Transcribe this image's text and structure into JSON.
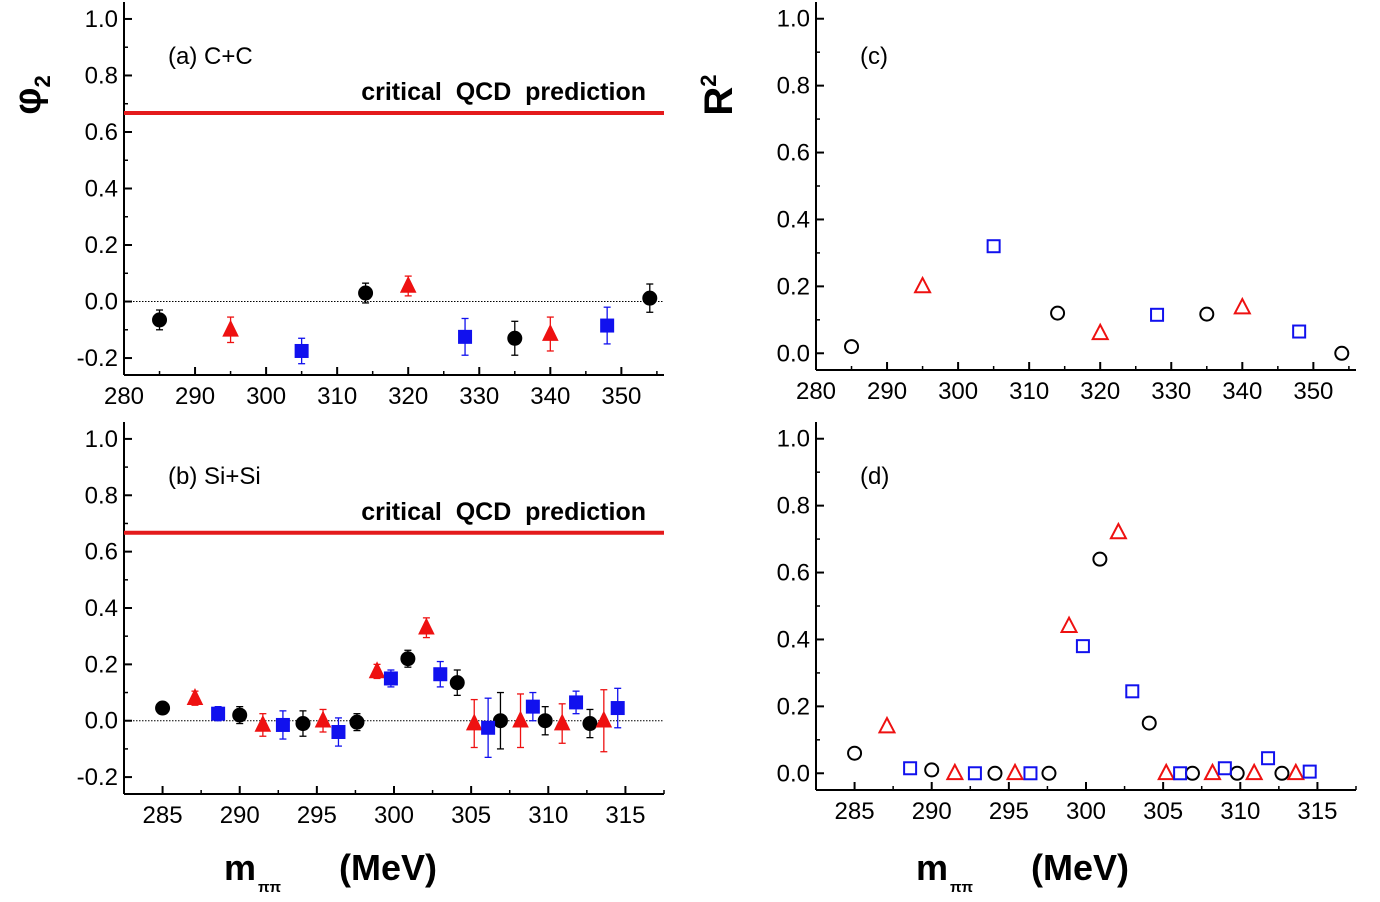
{
  "chart_data": [
    {
      "id": "a",
      "type": "scatter",
      "panel_label": "(a) C+C",
      "ylabel": "φ2",
      "xlim": [
        280,
        356
      ],
      "ylim": [
        -0.26,
        1.06
      ],
      "xticks": [
        280,
        290,
        300,
        310,
        320,
        330,
        340,
        350
      ],
      "yticks": [
        -0.2,
        0.0,
        0.2,
        0.4,
        0.6,
        0.8,
        1.0
      ],
      "reference_line": {
        "label": "critical  QCD  prediction",
        "value": 0.667,
        "color": "#e41a1c"
      },
      "zero_line": true,
      "series": [
        {
          "marker": "filled-circle",
          "color": "#000000",
          "points": [
            [
              285,
              -0.065,
              0.035
            ],
            [
              314,
              0.03,
              0.035
            ],
            [
              335,
              -0.13,
              0.06
            ],
            [
              354,
              0.012,
              0.05
            ]
          ]
        },
        {
          "marker": "filled-triangle",
          "color": "#ee1111",
          "points": [
            [
              295,
              -0.1,
              0.045
            ],
            [
              320,
              0.055,
              0.035
            ],
            [
              340,
              -0.115,
              0.06
            ]
          ]
        },
        {
          "marker": "filled-square",
          "color": "#1111ee",
          "points": [
            [
              305,
              -0.175,
              0.045
            ],
            [
              328,
              -0.125,
              0.065
            ],
            [
              348,
              -0.085,
              0.065
            ]
          ]
        }
      ]
    },
    {
      "id": "b",
      "type": "scatter",
      "panel_label": "(b) Si+Si",
      "ylabel": "",
      "xlabel_main": "m",
      "xlabel_sub": "ππ",
      "xlabel_unit": "(MeV)",
      "xlim": [
        282.5,
        317.5
      ],
      "ylim": [
        -0.26,
        1.06
      ],
      "xticks": [
        285,
        290,
        295,
        300,
        305,
        310,
        315
      ],
      "yticks": [
        -0.2,
        0.0,
        0.2,
        0.4,
        0.6,
        0.8,
        1.0
      ],
      "reference_line": {
        "label": "critical  QCD  prediction",
        "value": 0.667,
        "color": "#e41a1c"
      },
      "zero_line": true,
      "series": [
        {
          "marker": "filled-circle",
          "color": "#000000",
          "points": [
            [
              285,
              0.045,
              0.015
            ],
            [
              290,
              0.02,
              0.03
            ],
            [
              294.1,
              -0.01,
              0.045
            ],
            [
              297.6,
              -0.005,
              0.03
            ],
            [
              300.9,
              0.22,
              0.03
            ],
            [
              304.1,
              0.135,
              0.045
            ],
            [
              306.9,
              0.0,
              0.1
            ],
            [
              309.8,
              0.0,
              0.05
            ],
            [
              312.7,
              -0.01,
              0.05
            ]
          ]
        },
        {
          "marker": "filled-triangle",
          "color": "#ee1111",
          "points": [
            [
              287.1,
              0.08,
              0.025
            ],
            [
              291.5,
              -0.015,
              0.04
            ],
            [
              295.4,
              0.0,
              0.04
            ],
            [
              298.9,
              0.175,
              0.025
            ],
            [
              302.1,
              0.33,
              0.035
            ],
            [
              305.2,
              -0.01,
              0.085
            ],
            [
              308.2,
              0.0,
              0.095
            ],
            [
              310.9,
              -0.01,
              0.07
            ],
            [
              313.6,
              0.0,
              0.11
            ]
          ]
        },
        {
          "marker": "filled-square",
          "color": "#1111ee",
          "points": [
            [
              288.6,
              0.025,
              0.025
            ],
            [
              292.8,
              -0.015,
              0.05
            ],
            [
              296.4,
              -0.04,
              0.05
            ],
            [
              299.8,
              0.15,
              0.03
            ],
            [
              303.0,
              0.165,
              0.045
            ],
            [
              306.1,
              -0.025,
              0.105
            ],
            [
              309.0,
              0.05,
              0.05
            ],
            [
              311.8,
              0.065,
              0.04
            ],
            [
              314.5,
              0.045,
              0.07
            ]
          ]
        }
      ]
    },
    {
      "id": "c",
      "type": "scatter",
      "panel_label": "(c)",
      "ylabel": "R2",
      "xlim": [
        280,
        356
      ],
      "ylim": [
        -0.05,
        1.05
      ],
      "xticks": [
        280,
        290,
        300,
        310,
        320,
        330,
        340,
        350
      ],
      "yticks": [
        0.0,
        0.2,
        0.4,
        0.6,
        0.8,
        1.0
      ],
      "zero_line": false,
      "series": [
        {
          "marker": "open-circle",
          "color": "#000000",
          "points": [
            [
              285,
              0.02
            ],
            [
              314,
              0.12
            ],
            [
              335,
              0.117
            ],
            [
              354,
              0.0
            ]
          ]
        },
        {
          "marker": "open-triangle",
          "color": "#ee1111",
          "points": [
            [
              295,
              0.2
            ],
            [
              320,
              0.06
            ],
            [
              340,
              0.137
            ]
          ]
        },
        {
          "marker": "open-square",
          "color": "#1111ee",
          "points": [
            [
              305,
              0.32
            ],
            [
              328,
              0.115
            ],
            [
              348,
              0.065
            ]
          ]
        }
      ]
    },
    {
      "id": "d",
      "type": "scatter",
      "panel_label": "(d)",
      "ylabel": "",
      "xlabel_main": "m",
      "xlabel_sub": "ππ",
      "xlabel_unit": "(MeV)",
      "xlim": [
        282.5,
        317.5
      ],
      "ylim": [
        -0.05,
        1.05
      ],
      "xticks": [
        285,
        290,
        295,
        300,
        305,
        310,
        315
      ],
      "yticks": [
        0.0,
        0.2,
        0.4,
        0.6,
        0.8,
        1.0
      ],
      "zero_line": false,
      "series": [
        {
          "marker": "open-circle",
          "color": "#000000",
          "points": [
            [
              285,
              0.06
            ],
            [
              290,
              0.01
            ],
            [
              294.1,
              0.0
            ],
            [
              297.6,
              0.0
            ],
            [
              300.9,
              0.64
            ],
            [
              304.1,
              0.15
            ],
            [
              306.9,
              0.0
            ],
            [
              309.8,
              0.0
            ],
            [
              312.7,
              0.0
            ]
          ]
        },
        {
          "marker": "open-triangle",
          "color": "#ee1111",
          "points": [
            [
              287.1,
              0.14
            ],
            [
              291.5,
              0.0
            ],
            [
              295.4,
              0.0
            ],
            [
              298.9,
              0.44
            ],
            [
              302.1,
              0.72
            ],
            [
              305.2,
              0.0
            ],
            [
              308.2,
              0.0
            ],
            [
              310.9,
              0.0
            ],
            [
              313.6,
              0.0
            ]
          ]
        },
        {
          "marker": "open-square",
          "color": "#1111ee",
          "points": [
            [
              288.6,
              0.015
            ],
            [
              292.8,
              0.0
            ],
            [
              296.4,
              0.0
            ],
            [
              299.8,
              0.38
            ],
            [
              303.0,
              0.245
            ],
            [
              306.1,
              0.0
            ],
            [
              309.0,
              0.015
            ],
            [
              311.8,
              0.045
            ],
            [
              314.5,
              0.005
            ]
          ]
        }
      ]
    }
  ]
}
